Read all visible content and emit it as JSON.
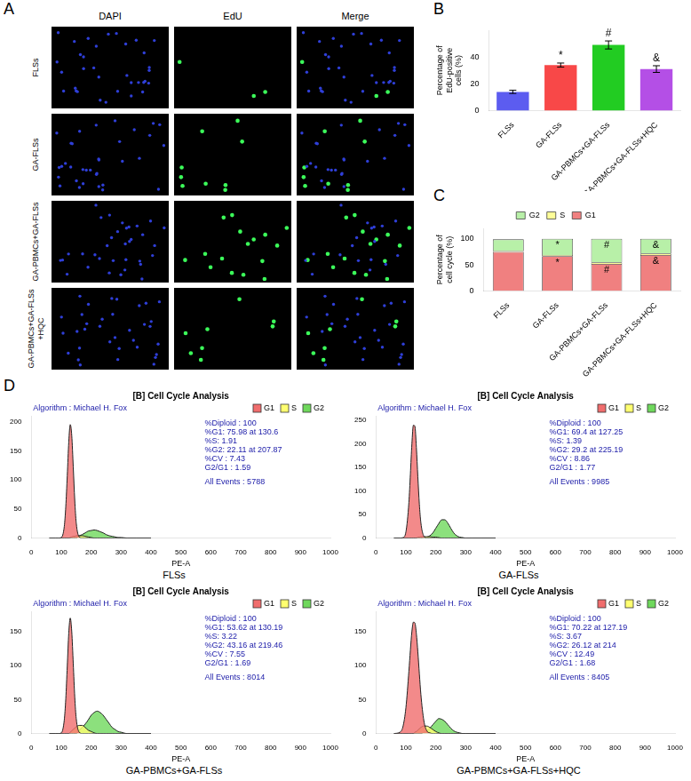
{
  "figure": {
    "panel_labels": [
      "A",
      "B",
      "C",
      "D"
    ]
  },
  "panel_A": {
    "columns": [
      "DAPI",
      "EdU",
      "Merge"
    ],
    "rows": [
      "FLSs",
      "GA-FLSs",
      "GA-PBMCs+GA-FLSs",
      "GA-PBMCs+GA-FLSs+HQC"
    ]
  },
  "chart_data": [
    {
      "type": "bar",
      "y_label": "Percentage of EdU-positive cells (%)",
      "categories": [
        "FLSs",
        "GA-FLSs",
        "GA-PBMCs+GA-FLSs",
        "GA-PBMCs+GA-FLSs+HQC"
      ],
      "values": [
        14,
        34,
        49,
        31
      ],
      "errors": [
        1.2,
        1.5,
        3,
        2.5
      ],
      "significance": [
        null,
        "*",
        "#",
        "&"
      ],
      "colors": [
        "#5c5cf0",
        "#f84848",
        "#22cc22",
        "#b44fe6"
      ],
      "ylim": [
        0,
        60
      ],
      "yticks": [
        0,
        20,
        40
      ],
      "grid": false
    },
    {
      "type": "bar",
      "stacked": true,
      "y_label": "Percentage of cell cycle (%)",
      "categories": [
        "FLSs",
        "GA-FLSs",
        "GA-PBMCs+GA-FLSs",
        "GA-PBMCs+GA-FLSs+HQC"
      ],
      "series": [
        {
          "name": "G1",
          "color": "#f08080",
          "values": [
            75,
            67,
            52,
            69
          ],
          "significance": [
            null,
            "*",
            "#",
            "&"
          ]
        },
        {
          "name": "S",
          "color": "#ffff99",
          "values": [
            2,
            2,
            3,
            3
          ]
        },
        {
          "name": "G2",
          "color": "#b8f0a8",
          "values": [
            22,
            31,
            45,
            28
          ],
          "significance": [
            null,
            "*",
            "#",
            "&"
          ]
        }
      ],
      "legend": "top",
      "ylim": [
        0,
        120
      ],
      "yticks": [
        0,
        50,
        100
      ],
      "grid": false
    },
    {
      "type": "area",
      "title": "[B] Cell Cycle Analysis",
      "annotation": "Algorithm : Michael H. Fox",
      "stats": [
        "%Diploid : 100",
        "%G1: 75.98 at 130.6",
        "%S: 1.91",
        "%G2: 22.11 at 207.87",
        "%CV : 7.43",
        "G2/G1 : 1.59"
      ],
      "events": "All Events : 5788",
      "x_label": "PE-A",
      "caption": "FLSs",
      "x": [
        60,
        80,
        90,
        100,
        110,
        115,
        120,
        125,
        130,
        135,
        140,
        145,
        150,
        160,
        170,
        180,
        190,
        200,
        210,
        220,
        230,
        240,
        250,
        260,
        270,
        280,
        290,
        300,
        320,
        350,
        400
      ],
      "series": [
        {
          "name": "G1",
          "color": "#f06d6d",
          "values": [
            0,
            0,
            0,
            1,
            20,
            54,
            107,
            165,
            195,
            176,
            122,
            65,
            26,
            2,
            0,
            0,
            0,
            0,
            0,
            0,
            0,
            0,
            0,
            0,
            0,
            0,
            0,
            0,
            0,
            0,
            0
          ]
        },
        {
          "name": "S",
          "color": "#ffff70",
          "values": [
            0,
            0,
            0,
            0,
            0,
            0,
            0,
            0,
            1,
            2,
            3,
            3,
            4,
            4,
            4,
            3,
            2,
            1,
            0,
            0,
            0,
            0,
            0,
            0,
            0,
            0,
            0,
            0,
            0,
            0,
            0
          ]
        },
        {
          "name": "G2",
          "color": "#6fd85c",
          "values": [
            0,
            0,
            0,
            0,
            0,
            0,
            0,
            0,
            0,
            0,
            0,
            0,
            0,
            4,
            6,
            9,
            12,
            13,
            14,
            13,
            11,
            9,
            6,
            4,
            3,
            2,
            1,
            1,
            0,
            0,
            0
          ]
        }
      ],
      "legend": "top",
      "xlim": [
        0,
        1000
      ],
      "xticks": [
        0,
        100,
        200,
        300,
        400,
        500,
        600,
        700,
        800,
        900,
        1000
      ],
      "ylim": [
        0,
        210
      ],
      "yticks": [
        0,
        50,
        100,
        150,
        200
      ],
      "grid": false
    },
    {
      "type": "area",
      "title": "[B] Cell Cycle Analysis",
      "annotation": "Algorithm : Michael H. Fox",
      "stats": [
        "%Diploid : 100",
        "%G1: 69.4 at 127.25",
        "%S: 1.39",
        "%G2: 29.2 at 225.19",
        "%CV : 8.86",
        "G2/G1 : 1.77"
      ],
      "events": "All Events : 9985",
      "x_label": "PE-A",
      "caption": "GA-FLSs",
      "x": [
        60,
        80,
        90,
        100,
        110,
        115,
        120,
        125,
        130,
        135,
        140,
        145,
        150,
        160,
        170,
        180,
        190,
        200,
        210,
        220,
        230,
        240,
        250,
        260,
        270,
        280,
        290,
        300,
        320,
        350,
        400
      ],
      "series": [
        {
          "name": "G1",
          "color": "#f06d6d",
          "values": [
            0,
            0,
            1,
            13,
            76,
            136,
            200,
            240,
            238,
            193,
            130,
            72,
            33,
            4,
            0,
            0,
            0,
            0,
            0,
            0,
            0,
            0,
            0,
            0,
            0,
            0,
            0,
            0,
            0,
            0,
            0
          ]
        },
        {
          "name": "S",
          "color": "#ffff70",
          "values": [
            0,
            0,
            0,
            0,
            0,
            0,
            0,
            0,
            0,
            0,
            2,
            2,
            3,
            3,
            3,
            3,
            2,
            2,
            1,
            0,
            0,
            0,
            0,
            0,
            0,
            0,
            0,
            0,
            0,
            0,
            0
          ]
        },
        {
          "name": "G2",
          "color": "#6fd85c",
          "values": [
            0,
            0,
            0,
            0,
            0,
            0,
            0,
            0,
            0,
            0,
            0,
            0,
            0,
            1,
            2,
            5,
            11,
            21,
            31,
            39,
            39,
            32,
            21,
            11,
            5,
            2,
            1,
            0,
            0,
            0,
            0
          ]
        }
      ],
      "legend": "top",
      "xlim": [
        0,
        1000
      ],
      "xticks": [
        0,
        100,
        200,
        300,
        400,
        500,
        600,
        700,
        800,
        900,
        1000
      ],
      "ylim": [
        0,
        260
      ],
      "yticks": [
        0,
        50,
        100,
        150,
        200,
        250
      ],
      "grid": false
    },
    {
      "type": "area",
      "title": "[B] Cell Cycle Analysis",
      "annotation": "Algorithm : Michael H. Fox",
      "stats": [
        "%Diploid : 100",
        "%G1: 53.62 at 130.19",
        "%S: 3.22",
        "%G2: 43.16 at 219.46",
        "%CV : 7.55",
        "G2/G1 : 1.69"
      ],
      "events": "All Events : 8014",
      "x_label": "PE-A",
      "caption": "GA-PBMCs+GA-FLSs",
      "x": [
        60,
        80,
        90,
        100,
        110,
        115,
        120,
        125,
        130,
        135,
        140,
        145,
        150,
        160,
        170,
        180,
        190,
        200,
        210,
        220,
        230,
        240,
        250,
        260,
        270,
        280,
        290,
        300,
        320,
        350,
        400
      ],
      "series": [
        {
          "name": "G1",
          "color": "#f06d6d",
          "values": [
            0,
            0,
            0,
            1,
            20,
            51,
            99,
            148,
            170,
            150,
            103,
            54,
            22,
            2,
            0,
            0,
            0,
            0,
            0,
            0,
            0,
            0,
            0,
            0,
            0,
            0,
            0,
            0,
            0,
            0,
            0
          ]
        },
        {
          "name": "S",
          "color": "#ffff70",
          "values": [
            0,
            0,
            0,
            0,
            0,
            0,
            0,
            0,
            2,
            4,
            6,
            8,
            10,
            12,
            12,
            9,
            5,
            3,
            1,
            0,
            0,
            0,
            0,
            0,
            0,
            0,
            0,
            0,
            0,
            0,
            0
          ]
        },
        {
          "name": "G2",
          "color": "#6fd85c",
          "values": [
            0,
            0,
            0,
            0,
            0,
            0,
            0,
            0,
            0,
            0,
            0,
            0,
            0,
            5,
            9,
            14,
            20,
            27,
            31,
            33,
            31,
            27,
            21,
            15,
            9,
            6,
            3,
            2,
            0,
            0,
            0
          ]
        }
      ],
      "legend": "top",
      "xlim": [
        0,
        1000
      ],
      "xticks": [
        0,
        100,
        200,
        300,
        400,
        500,
        600,
        700,
        800,
        900,
        1000
      ],
      "ylim": [
        0,
        180
      ],
      "yticks": [
        0,
        50,
        100,
        150
      ],
      "grid": false
    },
    {
      "type": "area",
      "title": "[B] Cell Cycle Analysis",
      "annotation": "Algorithm : Michael H. Fox",
      "stats": [
        "%Diploid : 100",
        "%G1: 70.22 at 127.19",
        "%S: 3.67",
        "%G2: 26.12 at 214",
        "%CV : 12.49",
        "G2/G1 : 1.68"
      ],
      "events": "All Events : 8405",
      "x_label": "PE-A",
      "caption": "GA-PBMCs+GA-FLSs+HQC",
      "x": [
        60,
        80,
        90,
        100,
        110,
        115,
        120,
        125,
        130,
        135,
        140,
        145,
        150,
        160,
        170,
        180,
        190,
        200,
        210,
        220,
        230,
        240,
        250,
        260,
        270,
        280,
        290,
        300,
        320,
        350,
        400
      ],
      "series": [
        {
          "name": "G1",
          "color": "#f06d6d",
          "values": [
            0,
            2,
            10,
            38,
            92,
            123,
            150,
            164,
            163,
            147,
            120,
            88,
            58,
            19,
            4,
            1,
            0,
            0,
            0,
            0,
            0,
            0,
            0,
            0,
            0,
            0,
            0,
            0,
            0,
            0,
            0
          ]
        },
        {
          "name": "S",
          "color": "#ffff70",
          "values": [
            0,
            0,
            0,
            0,
            0,
            0,
            0,
            0,
            2,
            3,
            5,
            7,
            9,
            11,
            11,
            9,
            6,
            3,
            1,
            0,
            0,
            0,
            0,
            0,
            0,
            0,
            0,
            0,
            0,
            0,
            0
          ]
        },
        {
          "name": "G2",
          "color": "#6fd85c",
          "values": [
            0,
            0,
            0,
            0,
            0,
            0,
            0,
            0,
            0,
            0,
            0,
            0,
            0,
            2,
            4,
            8,
            13,
            18,
            22,
            21,
            18,
            13,
            8,
            4,
            2,
            1,
            0,
            0,
            0,
            0,
            0
          ]
        }
      ],
      "legend": "top",
      "xlim": [
        0,
        1000
      ],
      "xticks": [
        0,
        100,
        200,
        300,
        400,
        500,
        600,
        700,
        800,
        900,
        1000
      ],
      "ylim": [
        0,
        180
      ],
      "yticks": [
        0,
        50,
        100,
        150
      ],
      "grid": false
    }
  ]
}
